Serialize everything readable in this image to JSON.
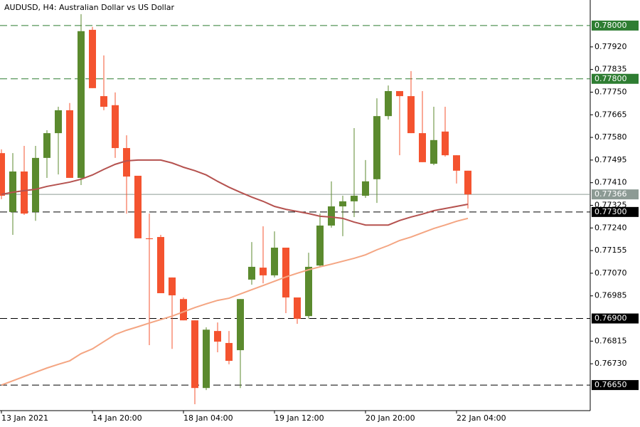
{
  "chart_data": {
    "type": "candlestick",
    "title": "AUDUSD, H4:  Australian Dollar vs US Dollar",
    "categories": [
      "13 Jan 2021",
      null,
      null,
      null,
      null,
      null,
      null,
      null,
      "14 Jan 20:00",
      null,
      null,
      null,
      null,
      null,
      null,
      null,
      "18 Jan 04:00",
      null,
      null,
      null,
      null,
      null,
      null,
      null,
      "19 Jan 12:00",
      null,
      null,
      null,
      null,
      null,
      null,
      null,
      "20 Jan 20:00",
      null,
      null,
      null,
      null,
      null,
      null,
      null,
      "22 Jan 04:00",
      null
    ],
    "open": [
      0.77521,
      0.773,
      0.77452,
      0.773,
      0.77503,
      0.77596,
      0.77682,
      0.77428,
      0.77984,
      0.77735,
      0.77701,
      0.7754,
      0.77436,
      0.77201,
      0.77206,
      0.77054,
      0.76973,
      0.76893,
      0.76639,
      0.76853,
      0.76808,
      0.76781,
      0.77046,
      0.77091,
      0.77062,
      0.77166,
      0.76979,
      0.76909,
      0.77099,
      0.77249,
      0.77321,
      0.7734,
      0.77361,
      0.77423,
      0.7766,
      0.77754,
      0.77735,
      0.77596,
      0.77481,
      0.77602,
      0.77513,
      0.77455
    ],
    "high": [
      0.77535,
      0.77521,
      0.77548,
      0.77548,
      0.77607,
      0.77695,
      0.77709,
      0.78043,
      0.77995,
      0.77888,
      0.77749,
      0.77588,
      0.77436,
      0.77294,
      0.77214,
      0.77054,
      0.76979,
      0.76893,
      0.76867,
      0.76885,
      0.76853,
      0.76973,
      0.77187,
      0.77246,
      0.77227,
      0.77166,
      0.76979,
      0.77147,
      0.77294,
      0.77415,
      0.77361,
      0.77615,
      0.77495,
      0.77727,
      0.77775,
      0.77754,
      0.77829,
      0.77754,
      0.77695,
      0.77695,
      0.77513,
      0.77455
    ],
    "low": [
      0.77348,
      0.77214,
      0.77289,
      0.77267,
      0.77428,
      0.77441,
      0.77428,
      0.77401,
      0.77765,
      0.77682,
      0.77503,
      0.77294,
      0.77201,
      0.768,
      0.76995,
      0.76786,
      0.76893,
      0.76578,
      0.76631,
      0.76773,
      0.76728,
      0.76639,
      0.77027,
      0.77032,
      0.77054,
      0.7692,
      0.7688,
      0.76899,
      0.77094,
      0.77241,
      0.77209,
      0.77281,
      0.77353,
      0.77334,
      0.77647,
      0.77513,
      0.77596,
      0.77487,
      0.77476,
      0.77508,
      0.77407,
      0.77313
    ],
    "close": [
      0.77361,
      0.77452,
      0.77294,
      0.77503,
      0.77596,
      0.77682,
      0.77428,
      0.77979,
      0.77765,
      0.77695,
      0.7754,
      0.77433,
      0.77201,
      0.77198,
      0.76995,
      0.76987,
      0.76893,
      0.76639,
      0.76858,
      0.76813,
      0.76741,
      0.76973,
      0.77094,
      0.77062,
      0.77166,
      0.76979,
      0.76899,
      0.77094,
      0.77249,
      0.77321,
      0.7734,
      0.77361,
      0.77415,
      0.7766,
      0.77754,
      0.77735,
      0.77596,
      0.77487,
      0.7757,
      0.77513,
      0.77455,
      0.77366
    ],
    "up_color": "#5b8a2e",
    "down_color": "#f4532f",
    "lines": [
      {
        "color": "#b5524f",
        "values": [
          0.77366,
          0.77374,
          0.7738,
          0.77385,
          0.77396,
          0.77404,
          0.77412,
          0.77423,
          0.77439,
          0.7746,
          0.77479,
          0.77492,
          0.77495,
          0.77495,
          0.77495,
          0.77484,
          0.77468,
          0.77455,
          0.77439,
          0.77415,
          0.77393,
          0.77374,
          0.77356,
          0.7734,
          0.77321,
          0.7731,
          0.77302,
          0.77294,
          0.77284,
          0.77281,
          0.77276,
          0.77262,
          0.77251,
          0.77251,
          0.77251,
          0.77268,
          0.77281,
          0.77292,
          0.77305,
          0.77313,
          0.77321,
          0.77329
        ]
      },
      {
        "color": "#f4a582",
        "values": [
          0.7665,
          0.76666,
          0.76682,
          0.76698,
          0.76714,
          0.76728,
          0.76741,
          0.76768,
          0.76786,
          0.76813,
          0.7684,
          0.76856,
          0.76869,
          0.76883,
          0.76896,
          0.76909,
          0.76925,
          0.76941,
          0.76955,
          0.76968,
          0.76976,
          0.76992,
          0.77008,
          0.77024,
          0.7704,
          0.77056,
          0.7707,
          0.77083,
          0.77094,
          0.77104,
          0.77115,
          0.77126,
          0.77139,
          0.77158,
          0.77174,
          0.77193,
          0.77206,
          0.77222,
          0.77238,
          0.77251,
          0.77265,
          0.77276
        ]
      }
    ],
    "ylim": [
      0.76554,
      0.78096
    ],
    "yticks": [
      {
        "value": 0.7792,
        "label": "0.77920"
      },
      {
        "value": 0.77835,
        "label": "0.77835"
      },
      {
        "value": 0.7775,
        "label": "0.77750"
      },
      {
        "value": 0.77665,
        "label": "0.77665"
      },
      {
        "value": 0.7758,
        "label": "0.77580"
      },
      {
        "value": 0.77495,
        "label": "0.77495"
      },
      {
        "value": 0.7741,
        "label": "0.77410"
      },
      {
        "value": 0.77325,
        "label": "0.77325"
      },
      {
        "value": 0.7724,
        "label": "0.77240"
      },
      {
        "value": 0.77155,
        "label": "0.77155"
      },
      {
        "value": 0.7707,
        "label": "0.77070"
      },
      {
        "value": 0.76985,
        "label": "0.76985"
      },
      {
        "value": 0.76815,
        "label": "0.76815"
      },
      {
        "value": 0.7673,
        "label": "0.76730"
      }
    ],
    "levels": [
      {
        "value": 0.78,
        "label": "0.78000",
        "color": "#2e7d32"
      },
      {
        "value": 0.778,
        "label": "0.77800",
        "color": "#2e7d32"
      },
      {
        "value": 0.773,
        "label": "0.77300",
        "color": "#000000"
      },
      {
        "value": 0.769,
        "label": "0.76900",
        "color": "#000000"
      },
      {
        "value": 0.7665,
        "label": "0.76650",
        "color": "#000000"
      }
    ],
    "current_price": {
      "value": 0.77366,
      "label": "0.77366",
      "color": "#8c9a94"
    }
  }
}
